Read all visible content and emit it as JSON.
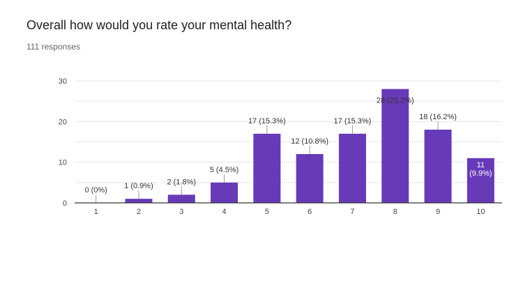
{
  "question": {
    "title": "Overall how would you rate your mental health?",
    "responses": "111 responses"
  },
  "colors": {
    "bar": "#673ab7",
    "grid": "#e6e6e6",
    "axis": "#333333"
  },
  "chart_data": {
    "type": "bar",
    "title": "",
    "xlabel": "",
    "ylabel": "",
    "categories": [
      "1",
      "2",
      "3",
      "4",
      "5",
      "6",
      "7",
      "8",
      "9",
      "10"
    ],
    "values": [
      0,
      1,
      2,
      5,
      17,
      12,
      17,
      28,
      18,
      11
    ],
    "data_labels": [
      "0 (0%)",
      "1 (0.9%)",
      "2 (1.8%)",
      "5 (4.5%)",
      "17 (15.3%)",
      "12 (10.8%)",
      "17 (15.3%)",
      "28 (25.2%)",
      "18 (16.2%)",
      "11 (9.9%)"
    ],
    "ylim": [
      0,
      30
    ],
    "yticks": [
      0,
      10,
      20,
      30
    ],
    "grid": true,
    "legend": "none"
  }
}
